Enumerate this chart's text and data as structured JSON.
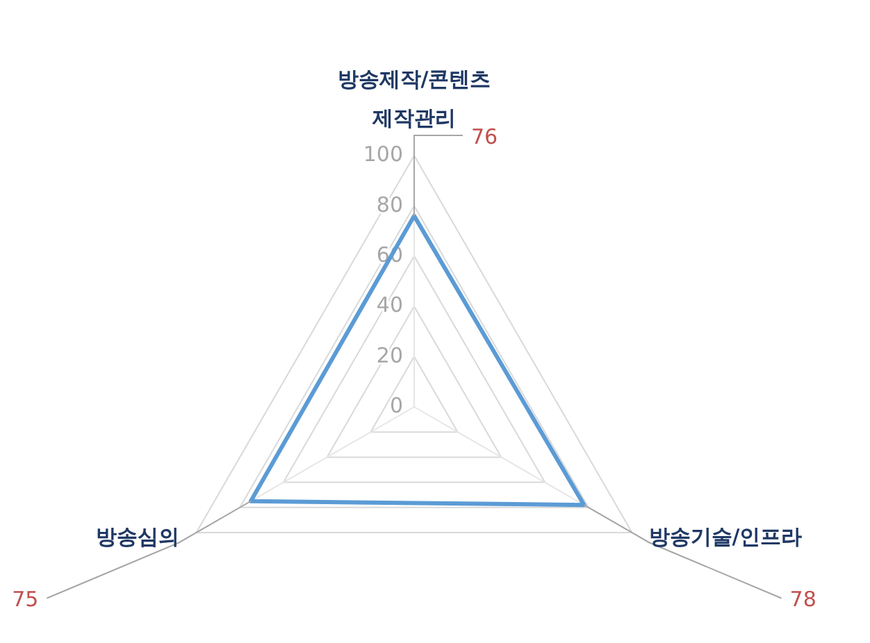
{
  "chart_data": {
    "type": "radar",
    "categories": [
      "방송제작/콘텐츠 제작관리",
      "방송기술/인프라",
      "방송심의"
    ],
    "series": [
      {
        "color": "#5b9bd5",
        "values": [
          76,
          78,
          75
        ],
        "value_labels": [
          "76",
          "78",
          "75"
        ]
      }
    ],
    "ylim": [
      0,
      100
    ],
    "yticks": [
      0,
      20,
      40,
      60,
      80,
      100
    ],
    "grid": true
  }
}
